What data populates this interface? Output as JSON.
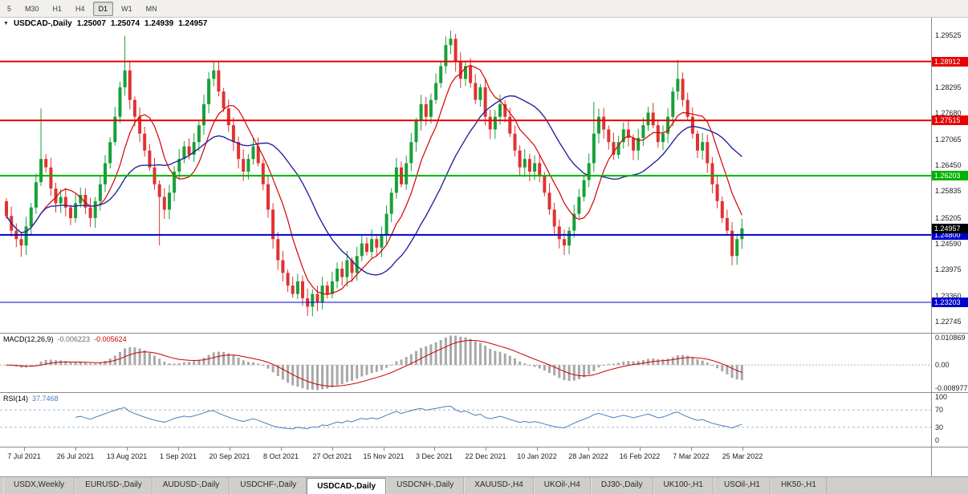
{
  "toolbar": {
    "timeframes": [
      {
        "label": "5",
        "active": false
      },
      {
        "label": "M30",
        "active": false
      },
      {
        "label": "H1",
        "active": false
      },
      {
        "label": "H4",
        "active": false
      },
      {
        "label": "D1",
        "active": true
      },
      {
        "label": "W1",
        "active": false
      },
      {
        "label": "MN",
        "active": false
      }
    ]
  },
  "chart_header": {
    "dropdown_icon": "chart-symbol-dropdown",
    "symbol": "USDCAD-,Daily",
    "open": "1.25007",
    "high": "1.25074",
    "low": "1.24939",
    "close": "1.24957"
  },
  "chart_data": {
    "type": "candlestick",
    "symbol": "USDCAD",
    "timeframe": "Daily",
    "colors": {
      "bull": "#18a038",
      "bear": "#e03232",
      "ma_fast": "#d40000",
      "ma_slow": "#26269c",
      "macd_bar": "#a8a8a8",
      "macd_signal": "#cc0000",
      "rsi_line": "#4a7ebb"
    },
    "price_axis": {
      "ticks": [
        1.29525,
        1.28295,
        1.2768,
        1.27065,
        1.2645,
        1.25835,
        1.25205,
        1.2459,
        1.23975,
        1.2336,
        1.22745
      ],
      "view_max": 1.2995,
      "view_min": 1.2248
    },
    "current_price": 1.24957,
    "hlines": [
      {
        "price": 1.28912,
        "color": "#e60000",
        "width": 2
      },
      {
        "price": 1.27515,
        "color": "#e60000",
        "width": 2
      },
      {
        "price": 1.26203,
        "color": "#00b300",
        "width": 2
      },
      {
        "price": 1.248,
        "color": "#0000cc",
        "width": 2
      },
      {
        "price": 1.23203,
        "color": "#0000cc",
        "width": 1
      }
    ],
    "closes": [
      1.2525,
      1.249,
      1.247,
      1.2455,
      1.25,
      1.2545,
      1.2605,
      1.266,
      1.264,
      1.259,
      1.2555,
      1.257,
      1.2545,
      1.252,
      1.2555,
      1.2575,
      1.2545,
      1.252,
      1.256,
      1.26,
      1.265,
      1.27,
      1.276,
      1.283,
      1.287,
      1.28,
      1.276,
      1.272,
      1.268,
      1.264,
      1.26,
      1.257,
      1.254,
      1.258,
      1.263,
      1.266,
      1.269,
      1.267,
      1.27,
      1.274,
      1.279,
      1.285,
      1.287,
      1.282,
      1.278,
      1.274,
      1.27,
      1.266,
      1.263,
      1.266,
      1.269,
      1.265,
      1.26,
      1.254,
      1.247,
      1.242,
      1.239,
      1.236,
      1.234,
      1.237,
      1.233,
      1.231,
      1.234,
      1.232,
      1.236,
      1.234,
      1.237,
      1.24,
      1.238,
      1.242,
      1.239,
      1.243,
      1.246,
      1.244,
      1.247,
      1.245,
      1.248,
      1.253,
      1.258,
      1.264,
      1.26,
      1.265,
      1.27,
      1.275,
      1.279,
      1.276,
      1.28,
      1.284,
      1.288,
      1.293,
      1.2945,
      1.289,
      1.285,
      1.288,
      1.284,
      1.28,
      1.283,
      1.276,
      1.273,
      1.276,
      1.279,
      1.276,
      1.272,
      1.268,
      1.264,
      1.266,
      1.263,
      1.265,
      1.262,
      1.258,
      1.254,
      1.25,
      1.247,
      1.2455,
      1.249,
      1.253,
      1.257,
      1.261,
      1.265,
      1.272,
      1.276,
      1.273,
      1.27,
      1.267,
      1.27,
      1.273,
      1.271,
      1.268,
      1.271,
      1.274,
      1.277,
      1.274,
      1.27,
      1.272,
      1.276,
      1.282,
      1.285,
      1.28,
      1.276,
      1.272,
      1.268,
      1.27,
      1.265,
      1.26,
      1.256,
      1.252,
      1.249,
      1.243,
      1.247,
      1.24957
    ],
    "first_open": 1.256,
    "spike_highs": {
      "7": 1.278,
      "24": 1.2952,
      "42": 1.2892,
      "90": 1.2964,
      "119": 1.2795,
      "136": 1.2895
    },
    "spike_lows": {
      "3": 1.2428,
      "31": 1.2455,
      "61": 1.2288,
      "113": 1.2432,
      "147": 1.2408
    },
    "ma_fast_period": 8,
    "ma_slow_period": 21,
    "date_labels": [
      "7 Jul 2021",
      "26 Jul 2021",
      "13 Aug 2021",
      "1 Sep 2021",
      "20 Sep 2021",
      "8 Oct 2021",
      "27 Oct 2021",
      "15 Nov 2021",
      "3 Dec 2021",
      "22 Dec 2021",
      "10 Jan 2022",
      "28 Jan 2022",
      "16 Feb 2022",
      "7 Mar 2022",
      "25 Mar 2022"
    ],
    "macd": {
      "label": "MACD(12,26,9)",
      "main_value": "-0.006223",
      "signal_value": "-0.005624",
      "fast": 12,
      "slow": 26,
      "signal": 9,
      "axis_labels": [
        "0.010869",
        "0.00",
        "-0.008977"
      ],
      "axis_values": [
        0.010869,
        0,
        -0.008977
      ]
    },
    "rsi": {
      "label": "RSI(14)",
      "value": "37.7468",
      "period": 14,
      "axis_labels": [
        "100",
        "70",
        "30",
        "0"
      ],
      "axis_values": [
        100,
        70,
        30,
        0
      ],
      "levels": [
        70,
        30
      ]
    }
  },
  "tabs": [
    {
      "label": "USDX,Weekly",
      "active": false
    },
    {
      "label": "EURUSD-,Daily",
      "active": false
    },
    {
      "label": "AUDUSD-,Daily",
      "active": false
    },
    {
      "label": "USDCHF-,Daily",
      "active": false
    },
    {
      "label": "USDCAD-,Daily",
      "active": true
    },
    {
      "label": "USDCNH-,Daily",
      "active": false
    },
    {
      "label": "XAUUSD-,H4",
      "active": false
    },
    {
      "label": "UKOil-,H4",
      "active": false
    },
    {
      "label": "DJ30-,Daily",
      "active": false
    },
    {
      "label": "UK100-,H1",
      "active": false
    },
    {
      "label": "USOil-,H1",
      "active": false
    },
    {
      "label": "HK50-,H1",
      "active": false
    }
  ]
}
